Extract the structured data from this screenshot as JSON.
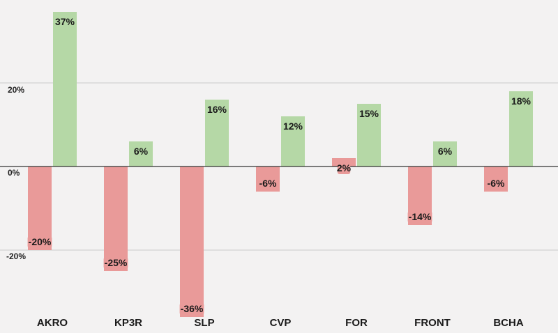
{
  "chart_data": {
    "type": "bar",
    "categories": [
      "AKRO",
      "KP3R",
      "SLP",
      "CVP",
      "FOR",
      "FRONT",
      "BCHA"
    ],
    "series": [
      {
        "name": "red",
        "values": [
          -20,
          -25,
          -36,
          -6,
          2,
          -14,
          -6
        ],
        "labels": [
          "-20%",
          "-25%",
          "-36%",
          "-6%",
          "2%",
          "-14%",
          "-6%"
        ]
      },
      {
        "name": "green",
        "values": [
          37,
          6,
          16,
          12,
          15,
          6,
          18
        ],
        "labels": [
          "37%",
          "6%",
          "16%",
          "12%",
          "15%",
          "6%",
          "18%"
        ]
      }
    ],
    "yticks": [
      {
        "value": 20,
        "label": "20%"
      },
      {
        "value": 0,
        "label": "0%"
      },
      {
        "value": -20,
        "label": "-20%"
      }
    ],
    "ylim": [
      -37,
      40
    ],
    "grid": true,
    "colors": {
      "red": "#e99a99",
      "green": "#b5d8a6",
      "zero_line": "#333333",
      "grid": "#c9c9c9"
    }
  }
}
